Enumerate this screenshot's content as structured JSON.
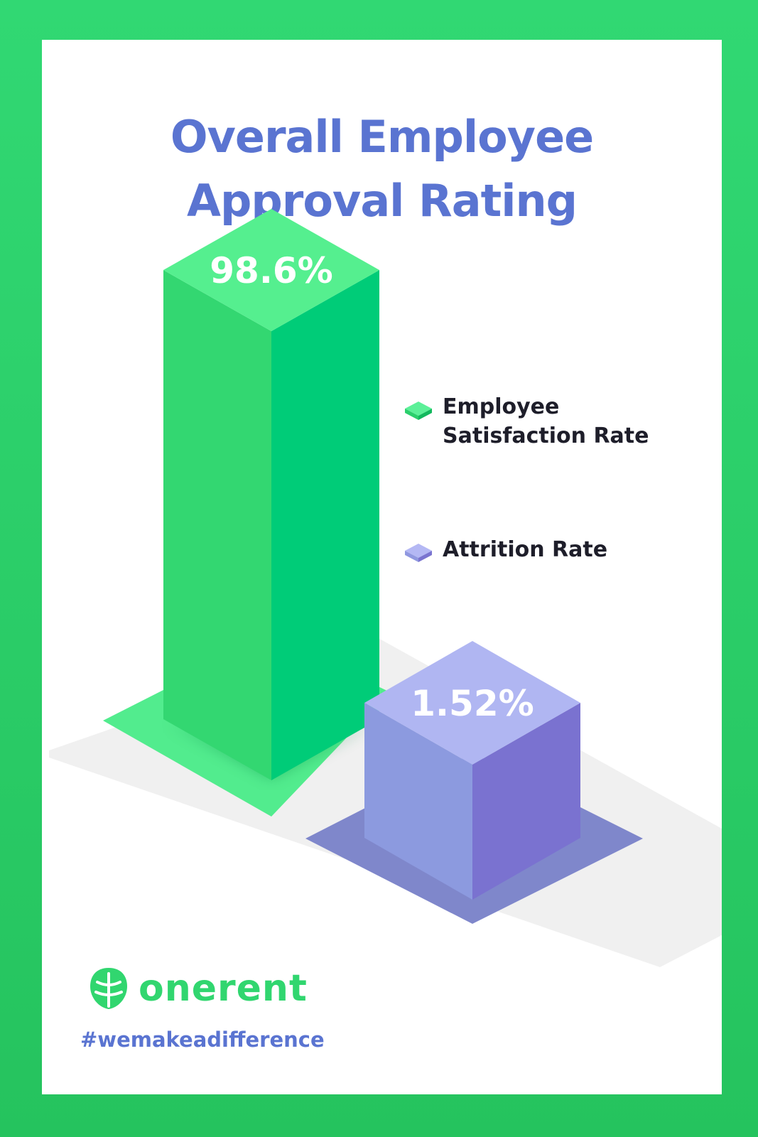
{
  "title": {
    "line1": "Overall Employee",
    "line2": "Approval Rating"
  },
  "chart_data": {
    "type": "bar",
    "title": "Overall Employee Approval Rating",
    "categories": [
      "Employee Satisfaction Rate",
      "Attrition Rate"
    ],
    "values": [
      98.6,
      1.52
    ],
    "value_labels": [
      "98.6%",
      "1.52%"
    ],
    "unit": "%",
    "legend": {
      "placement": "right",
      "entries": [
        {
          "line1": "Employee",
          "line2": "Satisfaction Rate",
          "color": "#2fd870"
        },
        {
          "line1": "Attrition Rate",
          "line2": "",
          "color": "#8f96e4"
        }
      ]
    },
    "colors": {
      "green_top": "#55ef8f",
      "green_left": "#33d771",
      "green_right": "#00cc78",
      "green_base": "#52ec8e",
      "purple_top": "#b0b6f2",
      "purple_left": "#8c9adf",
      "purple_right": "#7a72d0",
      "purple_base": "#7f87cb",
      "floor": "#f0f0f0"
    },
    "grid": false,
    "style": "isometric-3d"
  },
  "brand": {
    "name": "onerent",
    "icon": "leaf-logo-icon",
    "hashtag": "#wemakeadifference",
    "color": "#31d66f"
  }
}
